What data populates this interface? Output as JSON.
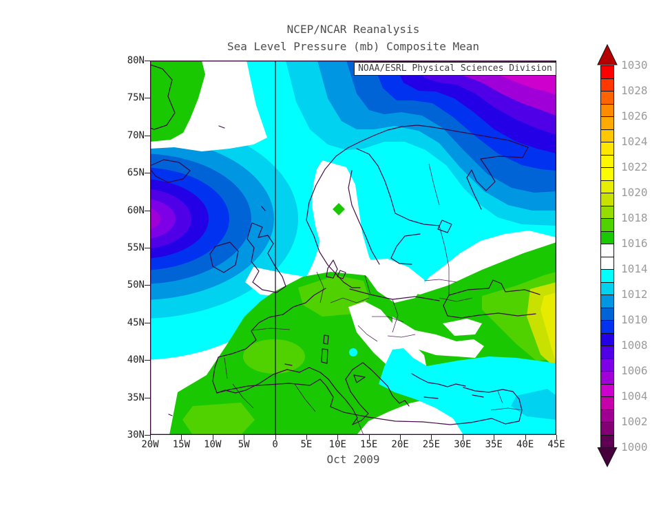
{
  "header": {
    "title_line1": "NCEP/NCAR Reanalysis",
    "title_line2": "Sea Level Pressure (mb) Composite Mean"
  },
  "annotation": {
    "credit": "NOAA/ESRL Physical Sciences Division"
  },
  "footer": {
    "caption": "Oct 2009"
  },
  "axes": {
    "lat_labels": [
      "80N",
      "75N",
      "70N",
      "65N",
      "60N",
      "55N",
      "50N",
      "45N",
      "40N",
      "35N",
      "30N"
    ],
    "lon_labels": [
      "20W",
      "15W",
      "10W",
      "5W",
      "0",
      "5E",
      "10E",
      "15E",
      "20E",
      "25E",
      "30E",
      "35E",
      "40E",
      "45E"
    ]
  },
  "colorbar": {
    "unit": "mb",
    "labels": [
      "1030",
      "1028",
      "1026",
      "1024",
      "1022",
      "1020",
      "1018",
      "1016",
      "1014",
      "1012",
      "1010",
      "1008",
      "1006",
      "1004",
      "1002",
      "1000"
    ],
    "segment_colors_top_to_bottom": [
      "#fa0000",
      "#ff3700",
      "#ff6400",
      "#ff8c00",
      "#ffaa00",
      "#ffc800",
      "#ffe600",
      "#fff700",
      "#fcfc00",
      "#e8ee00",
      "#c8e100",
      "#96dc00",
      "#50d200",
      "#19c800",
      "#ffffff",
      "#ffffff",
      "#00ffff",
      "#00d2f0",
      "#0096e1",
      "#0064d7",
      "#0032f0",
      "#2300e6",
      "#5000e6",
      "#7d00e6",
      "#a000d7",
      "#cd00cd",
      "#c800aa",
      "#a00091",
      "#820073",
      "#5f0055"
    ],
    "up_arrow_color": "#b40000",
    "down_arrow_color": "#46003c",
    "label_color": "#9b9b9b"
  },
  "map_palette": {
    "high_green": "#19c800",
    "high_green_2": "#50d200",
    "high_yellow_green": "#96dc00",
    "high_olive": "#c8e100",
    "high_yellow": "#e6eb00",
    "neutral_white": "#ffffff",
    "low_cyan": "#00ffff",
    "low_light_blue": "#00d2f0",
    "low_medium_blue": "#0096e1",
    "low_deep_blue": "#0064d7",
    "low_blue": "#0032f0",
    "low_blue_violet": "#2300e6",
    "low_violet": "#5000e6",
    "low_violet_2": "#7d00e6",
    "low_purple": "#a000d7",
    "low_magenta": "#cd00cd",
    "low_dark_magenta": "#aa0096",
    "coastline": "#3a0040",
    "frame": "#30002e"
  }
}
